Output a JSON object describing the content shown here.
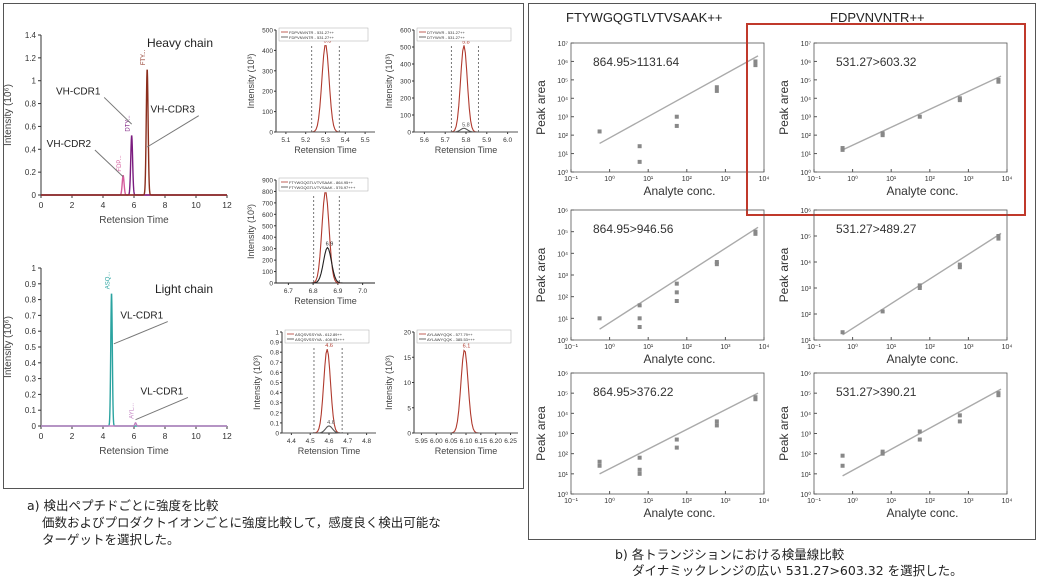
{
  "panel_a": {
    "caption_line1": "a) 検出ペプチドごとに強度を比較",
    "caption_line2": "価数およびプロダクトイオンごとに強度比較して，感度良く検出可能な",
    "caption_line3": "ターゲットを選択した。"
  },
  "panel_b": {
    "caption_line1": "b) 各トランジションにおける検量線比較",
    "caption_line2": "ダイナミックレンジの広い 531.27>603.32 を選択した。",
    "col1_title": "FTYWGQGTLVTVSAAK++",
    "col2_title": "FDPVNVNTR++",
    "highlight_color": "#c0392b"
  },
  "chart_data": [
    {
      "type": "line",
      "id": "heavy_chain",
      "title": "Heavy chain",
      "xlabel": "Retension Time",
      "ylabel": "Intensity (10⁶)",
      "xlim": [
        0,
        12
      ],
      "ylim": [
        0,
        1.4
      ],
      "xticks": [
        "0",
        "2",
        "4",
        "6",
        "8",
        "10",
        "12"
      ],
      "yticks": [
        "0",
        "0.2",
        "0.4",
        "0.6",
        "0.8",
        "1",
        "1.2",
        "1.4"
      ],
      "peaks": [
        {
          "rt": 5.3,
          "height": 0.17,
          "width": 0.06,
          "color": "#d55a9c",
          "tag": "FDP..."
        },
        {
          "rt": 5.85,
          "height": 0.52,
          "width": 0.06,
          "color": "#7b1c7f",
          "tag": "DTY..."
        },
        {
          "rt": 6.85,
          "height": 1.1,
          "width": 0.06,
          "color": "#8b2e1d",
          "tag": "FTY..."
        }
      ],
      "annotations": [
        {
          "label": "VH-CDR2",
          "at_x": 5.3,
          "at_y": 0.16,
          "text_x": 1.8,
          "text_y": 0.42
        },
        {
          "label": "VH-CDR1",
          "at_x": 5.85,
          "at_y": 0.62,
          "text_x": 2.4,
          "text_y": 0.88
        },
        {
          "label": "VH-CDR3",
          "at_x": 6.85,
          "at_y": 0.42,
          "text_x": 8.5,
          "text_y": 0.72
        }
      ]
    },
    {
      "type": "line",
      "id": "light_chain",
      "title": "Light chain",
      "xlabel": "Retension Time",
      "ylabel": "Intensity (10⁶)",
      "xlim": [
        0,
        12
      ],
      "ylim": [
        0,
        1.0
      ],
      "xticks": [
        "0",
        "2",
        "4",
        "6",
        "8",
        "10",
        "12"
      ],
      "yticks": [
        "0",
        "0.1",
        "0.2",
        "0.3",
        "0.4",
        "0.5",
        "0.6",
        "0.7",
        "0.8",
        "0.9",
        "1"
      ],
      "peaks": [
        {
          "rt": 4.55,
          "height": 0.84,
          "width": 0.05,
          "color": "#2aa3a0",
          "tag": "ASQ..."
        },
        {
          "rt": 6.1,
          "height": 0.02,
          "width": 0.05,
          "color": "#c080c0",
          "tag": "AYL..."
        }
      ],
      "annotations": [
        {
          "label": "VL-CDR1",
          "at_x": 4.7,
          "at_y": 0.52,
          "text_x": 6.5,
          "text_y": 0.68
        },
        {
          "label": "VL-CDR1",
          "at_x": 6.1,
          "at_y": 0.04,
          "text_x": 7.8,
          "text_y": 0.2
        }
      ]
    },
    {
      "type": "line",
      "id": "xic1",
      "xlabel": "Retension Time",
      "ylabel": "Intensity (10³)",
      "xlim": [
        5.05,
        5.55
      ],
      "ylim": [
        0,
        500
      ],
      "xticks": [
        "5.1",
        "5.2",
        "5.3",
        "5.4",
        "5.5"
      ],
      "yticks": [
        "0",
        "100",
        "200",
        "300",
        "400",
        "500"
      ],
      "bounds": [
        5.23,
        5.37
      ],
      "series": [
        {
          "color": "#b03a2e",
          "peak": 5.3,
          "height": 430,
          "width": 0.018,
          "label": "5.3"
        },
        {
          "color": "#555555",
          "peak": 5.3,
          "height": 0,
          "width": 0.018,
          "label": ""
        }
      ],
      "legend": [
        "FDPVNVNTR - 531.27++",
        "FDPVNVNTR - 531.27++"
      ]
    },
    {
      "type": "line",
      "id": "xic2",
      "xlabel": "Retension Time",
      "ylabel": "Intensity (10³)",
      "xlim": [
        5.55,
        6.05
      ],
      "ylim": [
        0,
        600
      ],
      "xticks": [
        "5.6",
        "5.7",
        "5.8",
        "5.9",
        "6.0"
      ],
      "yticks": [
        "0",
        "100",
        "200",
        "300",
        "400",
        "500",
        "600"
      ],
      "bounds": [
        5.73,
        5.86
      ],
      "series": [
        {
          "color": "#b03a2e",
          "peak": 5.79,
          "height": 510,
          "width": 0.016,
          "label": "5.8"
        },
        {
          "color": "#555555",
          "peak": 5.79,
          "height": 22,
          "width": 0.016,
          "label": "5.8"
        }
      ],
      "legend": [
        "DTYWVR - 531.27++",
        "DTYWVR - 531.27++"
      ]
    },
    {
      "type": "line",
      "id": "xic3",
      "xlabel": "Retension Time",
      "ylabel": "Intensity (10³)",
      "xlim": [
        6.6,
        7.1
      ],
      "ylim": [
        0,
        900
      ],
      "xticks": [
        "6.7",
        "6.8",
        "6.9",
        "7.0"
      ],
      "yticks": [
        "0",
        "100",
        "200",
        "300",
        "400",
        "500",
        "600",
        "700",
        "800",
        "900"
      ],
      "bounds": [
        6.79,
        6.92
      ],
      "series": [
        {
          "color": "#b03a2e",
          "peak": 6.85,
          "height": 800,
          "width": 0.018,
          "label": "6.9"
        },
        {
          "color": "#222222",
          "peak": 6.86,
          "height": 310,
          "width": 0.02,
          "label": "6.9"
        }
      ],
      "legend": [
        "FTYWGQGTLVTVSAAK - 864.95++",
        "FTYWGQGTLVTVSAAK - 576.97+++"
      ]
    },
    {
      "type": "line",
      "id": "xic4",
      "xlabel": "Retension Time",
      "ylabel": "Intensity (10³)",
      "xlim": [
        4.35,
        4.85
      ],
      "ylim": [
        0,
        1.0
      ],
      "xticks": [
        "4.4",
        "4.5",
        "4.6",
        "4.7",
        "4.8"
      ],
      "yticks": [
        "0",
        "0.1",
        "0.2",
        "0.3",
        "0.4",
        "0.5",
        "0.6",
        "0.7",
        "0.8",
        "0.9",
        "1"
      ],
      "bounds": [
        4.52,
        4.67
      ],
      "series": [
        {
          "color": "#b03a2e",
          "peak": 4.59,
          "height": 0.83,
          "width": 0.018,
          "label": "4.6"
        },
        {
          "color": "#555555",
          "peak": 4.6,
          "height": 0.07,
          "width": 0.018,
          "label": "4.6"
        }
      ],
      "legend": [
        "ASQSVSSYVA - 612.89++",
        "ASQSVSSYVA - 408.93+++"
      ]
    },
    {
      "type": "line",
      "id": "xic5",
      "xlabel": "Retension Time",
      "ylabel": "Intensity (10³)",
      "xlim": [
        5.93,
        6.28
      ],
      "ylim": [
        0,
        20
      ],
      "xticks": [
        "5.95",
        "6.00",
        "6.05",
        "6.10",
        "6.15",
        "6.20",
        "6.25"
      ],
      "yticks": [
        "0",
        "5",
        "10",
        "15",
        "20"
      ],
      "bounds": [],
      "series": [
        {
          "color": "#b03a2e",
          "peak": 6.1,
          "height": 16.5,
          "width": 0.012,
          "label": "6.1"
        },
        {
          "color": "#555555",
          "peak": 6.1,
          "height": 0,
          "width": 0.012,
          "label": ""
        }
      ],
      "legend": [
        "AYLAWYQQK - 577.79++",
        "AYLAWYQQK - 385.53+++"
      ]
    },
    {
      "type": "scatter",
      "id": "cal_864_1131",
      "label": "864.95>1131.64",
      "xlabel": "Analyte conc.",
      "ylabel": "Peak area",
      "xlog": [
        -1,
        4
      ],
      "ylog": [
        0,
        7
      ],
      "xticks": [
        "10⁻¹",
        "10⁰",
        "10¹",
        "10²",
        "10³",
        "10⁴"
      ],
      "yticks": [
        "10⁰",
        "10¹",
        "10²",
        "10³",
        "10⁴",
        "10⁵",
        "10⁶",
        "10⁷"
      ],
      "points": [
        [
          0.55,
          2.2
        ],
        [
          6,
          1.4
        ],
        [
          6,
          0.55
        ],
        [
          55,
          3.0
        ],
        [
          55,
          2.5
        ],
        [
          600,
          4.6
        ],
        [
          600,
          4.4
        ],
        [
          6000,
          6.0
        ],
        [
          6000,
          5.8
        ]
      ],
      "fit": [
        [
          0.55,
          1.55
        ],
        [
          7000,
          6.3
        ]
      ]
    },
    {
      "type": "scatter",
      "id": "cal_531_603",
      "label": "531.27>603.32",
      "xlabel": "Analyte conc.",
      "ylabel": "Peak area",
      "xlog": [
        -1,
        4
      ],
      "ylog": [
        0,
        7
      ],
      "xticks": [
        "10⁻¹",
        "10⁰",
        "10¹",
        "10²",
        "10³",
        "10⁴"
      ],
      "yticks": [
        "10⁰",
        "10¹",
        "10²",
        "10³",
        "10⁴",
        "10⁵",
        "10⁶",
        "10⁷"
      ],
      "points": [
        [
          0.55,
          1.3
        ],
        [
          0.55,
          1.2
        ],
        [
          6,
          2.1
        ],
        [
          6,
          2.0
        ],
        [
          55,
          3.0
        ],
        [
          600,
          4.0
        ],
        [
          600,
          3.9
        ],
        [
          6000,
          5.0
        ],
        [
          6000,
          4.9
        ]
      ],
      "fit": [
        [
          0.55,
          1.2
        ],
        [
          7000,
          5.2
        ]
      ]
    },
    {
      "type": "scatter",
      "id": "cal_864_946",
      "label": "864.95>946.56",
      "xlabel": "Analyte conc.",
      "ylabel": "Peak area",
      "xlog": [
        -1,
        4
      ],
      "ylog": [
        0,
        6
      ],
      "xticks": [
        "10⁻¹",
        "10⁰",
        "10¹",
        "10²",
        "10³",
        "10⁴"
      ],
      "yticks": [
        "10⁰",
        "10¹",
        "10²",
        "10³",
        "10⁴",
        "10⁵",
        "10⁶"
      ],
      "points": [
        [
          0.55,
          1.0
        ],
        [
          6,
          1.6
        ],
        [
          6,
          1.0
        ],
        [
          6,
          0.6
        ],
        [
          55,
          2.6
        ],
        [
          55,
          2.2
        ],
        [
          55,
          1.8
        ],
        [
          600,
          3.6
        ],
        [
          600,
          3.5
        ],
        [
          6000,
          5.0
        ],
        [
          6000,
          4.9
        ]
      ],
      "fit": [
        [
          0.55,
          0.5
        ],
        [
          7000,
          5.2
        ]
      ]
    },
    {
      "type": "scatter",
      "id": "cal_531_489",
      "label": "531.27>489.27",
      "xlabel": "Analyte conc.",
      "ylabel": "Peak area",
      "xlog": [
        -1,
        4
      ],
      "ylog": [
        1,
        6
      ],
      "xticks": [
        "10⁻¹",
        "10⁰",
        "10¹",
        "10²",
        "10³",
        "10⁴"
      ],
      "yticks": [
        "10¹",
        "10²",
        "10³",
        "10⁴",
        "10⁵",
        "10⁶"
      ],
      "points": [
        [
          0.55,
          1.3
        ],
        [
          6,
          2.1
        ],
        [
          55,
          3.0
        ],
        [
          55,
          3.1
        ],
        [
          600,
          3.9
        ],
        [
          600,
          3.8
        ],
        [
          6000,
          4.9
        ],
        [
          6000,
          5.0
        ]
      ],
      "fit": [
        [
          0.55,
          1.2
        ],
        [
          7000,
          5.1
        ]
      ]
    },
    {
      "type": "scatter",
      "id": "cal_864_376",
      "label": "864.95>376.22",
      "xlabel": "Analyte conc.",
      "ylabel": "Peak area",
      "xlog": [
        -1,
        4
      ],
      "ylog": [
        0,
        6
      ],
      "xticks": [
        "10⁻¹",
        "10⁰",
        "10¹",
        "10²",
        "10³",
        "10⁴"
      ],
      "yticks": [
        "10⁰",
        "10¹",
        "10²",
        "10³",
        "10⁴",
        "10⁵",
        "10⁶"
      ],
      "points": [
        [
          0.55,
          1.6
        ],
        [
          0.55,
          1.4
        ],
        [
          6,
          1.8
        ],
        [
          6,
          1.2
        ],
        [
          6,
          1.0
        ],
        [
          55,
          2.7
        ],
        [
          55,
          2.3
        ],
        [
          600,
          3.6
        ],
        [
          600,
          3.4
        ],
        [
          6000,
          4.8
        ],
        [
          6000,
          4.7
        ]
      ],
      "fit": [
        [
          0.55,
          1.0
        ],
        [
          7000,
          5.0
        ]
      ]
    },
    {
      "type": "scatter",
      "id": "cal_531_390",
      "label": "531.27>390.21",
      "xlabel": "Analyte conc.",
      "ylabel": "Peak area",
      "xlog": [
        -1,
        4
      ],
      "ylog": [
        0,
        6
      ],
      "xticks": [
        "10⁻¹",
        "10⁰",
        "10¹",
        "10²",
        "10³",
        "10⁴"
      ],
      "yticks": [
        "10⁰",
        "10¹",
        "10²",
        "10³",
        "10⁴",
        "10⁵",
        "10⁶"
      ],
      "points": [
        [
          0.55,
          1.9
        ],
        [
          0.55,
          1.4
        ],
        [
          6,
          2.1
        ],
        [
          6,
          2.0
        ],
        [
          55,
          3.1
        ],
        [
          55,
          2.7
        ],
        [
          600,
          3.9
        ],
        [
          600,
          3.6
        ],
        [
          6000,
          5.0
        ],
        [
          6000,
          4.9
        ]
      ],
      "fit": [
        [
          0.55,
          0.9
        ],
        [
          7000,
          5.2
        ]
      ]
    }
  ]
}
